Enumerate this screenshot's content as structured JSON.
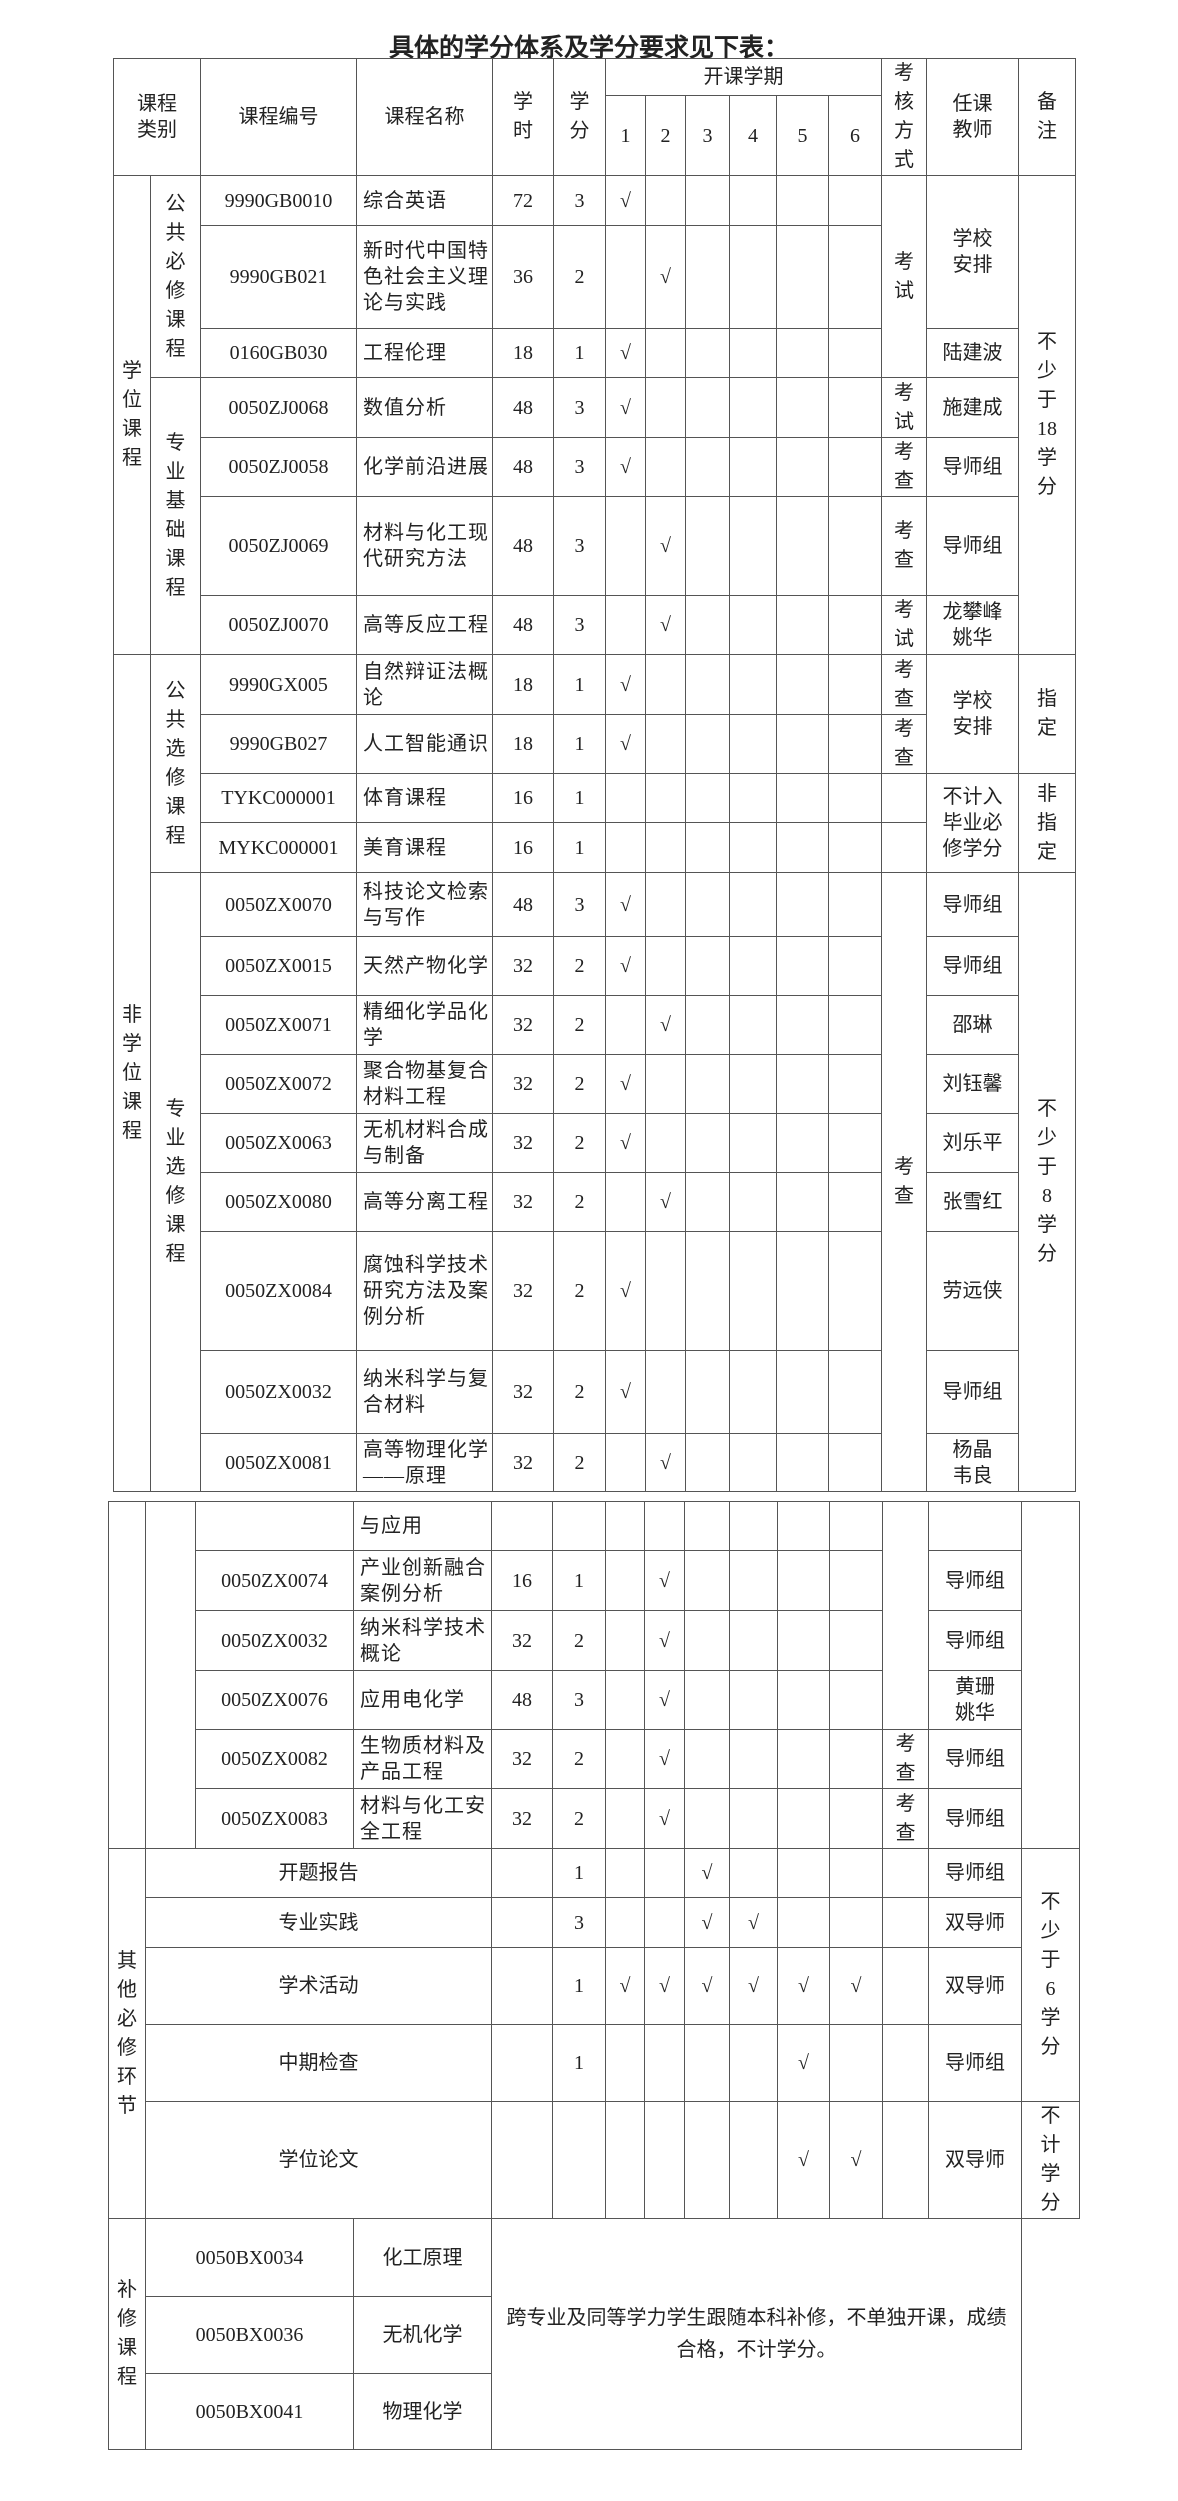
{
  "title": "具体的学分体系及学分要求见下表：",
  "header": {
    "category": "课程类别",
    "code": "课程编号",
    "name": "课程名称",
    "hours": "学时",
    "credits": "学分",
    "semester": "开课学期",
    "semesters": [
      "1",
      "2",
      "3",
      "4",
      "5",
      "6"
    ],
    "exam": "考核方式",
    "teacher": "任课教师",
    "note": "备注"
  },
  "groups": {
    "degree": "学位课程",
    "nondegree": "非学位课程",
    "other": "其他必修环节",
    "makeup": "补修课程"
  },
  "subgroups": {
    "public_required": "公共必修课程",
    "major_basic": "专业基础课程",
    "public_elective": "公共选修课程",
    "major_elective": "专业选修课程"
  },
  "courses": [
    {
      "code": "9990GB0010",
      "name": "综合英语",
      "hours": "72",
      "credits": "3",
      "sem": [
        "√",
        "",
        "",
        "",
        "",
        ""
      ]
    },
    {
      "code": "9990GB021",
      "name": "新时代中国特色社会主义理论与实践",
      "hours": "36",
      "credits": "2",
      "sem": [
        "",
        "√",
        "",
        "",
        "",
        ""
      ]
    },
    {
      "code": "0160GB030",
      "name": "工程伦理",
      "hours": "18",
      "credits": "1",
      "sem": [
        "√",
        "",
        "",
        "",
        "",
        ""
      ]
    },
    {
      "code": "0050ZJ0068",
      "name": "数值分析",
      "hours": "48",
      "credits": "3",
      "sem": [
        "√",
        "",
        "",
        "",
        "",
        ""
      ]
    },
    {
      "code": "0050ZJ0058",
      "name": "化学前沿进展",
      "hours": "48",
      "credits": "3",
      "sem": [
        "√",
        "",
        "",
        "",
        "",
        ""
      ]
    },
    {
      "code": "0050ZJ0069",
      "name": "材料与化工现代研究方法",
      "hours": "48",
      "credits": "3",
      "sem": [
        "",
        "√",
        "",
        "",
        "",
        ""
      ]
    },
    {
      "code": "0050ZJ0070",
      "name": "高等反应工程",
      "hours": "48",
      "credits": "3",
      "sem": [
        "",
        "√",
        "",
        "",
        "",
        ""
      ]
    },
    {
      "code": "9990GX005",
      "name": "自然辩证法概论",
      "hours": "18",
      "credits": "1",
      "sem": [
        "√",
        "",
        "",
        "",
        "",
        ""
      ]
    },
    {
      "code": "9990GB027",
      "name": "人工智能通识",
      "hours": "18",
      "credits": "1",
      "sem": [
        "√",
        "",
        "",
        "",
        "",
        ""
      ]
    },
    {
      "code": "TYKC000001",
      "name": "体育课程",
      "hours": "16",
      "credits": "1",
      "sem": [
        "",
        "",
        "",
        "",
        "",
        ""
      ]
    },
    {
      "code": "MYKC000001",
      "name": "美育课程",
      "hours": "16",
      "credits": "1",
      "sem": [
        "",
        "",
        "",
        "",
        "",
        ""
      ]
    },
    {
      "code": "0050ZX0070",
      "name": "科技论文检索与写作",
      "hours": "48",
      "credits": "3",
      "sem": [
        "√",
        "",
        "",
        "",
        "",
        ""
      ]
    },
    {
      "code": "0050ZX0015",
      "name": "天然产物化学",
      "hours": "32",
      "credits": "2",
      "sem": [
        "√",
        "",
        "",
        "",
        "",
        ""
      ]
    },
    {
      "code": "0050ZX0071",
      "name": "精细化学品化学",
      "hours": "32",
      "credits": "2",
      "sem": [
        "",
        "√",
        "",
        "",
        "",
        ""
      ]
    },
    {
      "code": "0050ZX0072",
      "name": "聚合物基复合材料工程",
      "hours": "32",
      "credits": "2",
      "sem": [
        "√",
        "",
        "",
        "",
        "",
        ""
      ]
    },
    {
      "code": "0050ZX0063",
      "name": "无机材料合成与制备",
      "hours": "32",
      "credits": "2",
      "sem": [
        "√",
        "",
        "",
        "",
        "",
        ""
      ]
    },
    {
      "code": "0050ZX0080",
      "name": "高等分离工程",
      "hours": "32",
      "credits": "2",
      "sem": [
        "",
        "√",
        "",
        "",
        "",
        ""
      ]
    },
    {
      "code": "0050ZX0084",
      "name": "腐蚀科学技术研究方法及案例分析",
      "hours": "32",
      "credits": "2",
      "sem": [
        "√",
        "",
        "",
        "",
        "",
        ""
      ]
    },
    {
      "code": "0050ZX0032",
      "name": "纳米科学与复合材料",
      "hours": "32",
      "credits": "2",
      "sem": [
        "√",
        "",
        "",
        "",
        "",
        ""
      ]
    },
    {
      "code": "0050ZX0081",
      "name": "高等物理化学——原理",
      "hours": "32",
      "credits": "2",
      "sem": [
        "",
        "√",
        "",
        "",
        "",
        ""
      ]
    },
    {
      "code": "",
      "name": "与应用",
      "hours": "",
      "credits": "",
      "sem": [
        "",
        "",
        "",
        "",
        "",
        ""
      ]
    },
    {
      "code": "0050ZX0074",
      "name": "产业创新融合案例分析",
      "hours": "16",
      "credits": "1",
      "sem": [
        "",
        "√",
        "",
        "",
        "",
        ""
      ]
    },
    {
      "code": "0050ZX0032",
      "name": "纳米科学技术概论",
      "hours": "32",
      "credits": "2",
      "sem": [
        "",
        "√",
        "",
        "",
        "",
        ""
      ]
    },
    {
      "code": "0050ZX0076",
      "name": "应用电化学",
      "hours": "48",
      "credits": "3",
      "sem": [
        "",
        "√",
        "",
        "",
        "",
        ""
      ]
    },
    {
      "code": "0050ZX0082",
      "name": "生物质材料及产品工程",
      "hours": "32",
      "credits": "2",
      "sem": [
        "",
        "√",
        "",
        "",
        "",
        ""
      ]
    },
    {
      "code": "0050ZX0083",
      "name": "材料与化工安全工程",
      "hours": "32",
      "credits": "2",
      "sem": [
        "",
        "√",
        "",
        "",
        "",
        ""
      ]
    }
  ],
  "exam": [
    "考试",
    "考试",
    "考查",
    "考查",
    "考试",
    "考查",
    "考查",
    "",
    "",
    "考查",
    "",
    "考查",
    "考查"
  ],
  "teachers": [
    "学校\n安排",
    "陆建波",
    "施建成",
    "导师组",
    "导师组",
    "龙攀峰\n姚华",
    "学校\n安排",
    "不计入\n毕业必\n修学分",
    "导师组",
    "导师组",
    "邵琳",
    "刘钰馨",
    "刘乐平",
    "张雪红",
    "劳远侠",
    "导师组",
    "杨晶\n韦良",
    "",
    "导师组",
    "导师组",
    "黄珊\n姚华",
    "导师组",
    "导师组"
  ],
  "notes": [
    "不少于18学分",
    "指定",
    "非指定",
    "不少于8学分",
    ""
  ],
  "other": {
    "items": [
      {
        "name": "开题报告",
        "credits": "1",
        "sem": [
          "",
          "",
          "√",
          "",
          "",
          ""
        ],
        "teacher": "导师组"
      },
      {
        "name": "专业实践",
        "credits": "3",
        "sem": [
          "",
          "",
          "√",
          "√",
          "",
          ""
        ],
        "teacher": "双导师"
      },
      {
        "name": "学术活动",
        "credits": "1",
        "sem": [
          "√",
          "√",
          "√",
          "√",
          "√",
          "√"
        ],
        "teacher": "双导师"
      },
      {
        "name": "中期检查",
        "credits": "1",
        "sem": [
          "",
          "",
          "",
          "",
          "√",
          ""
        ],
        "teacher": "导师组"
      },
      {
        "name": "学位论文",
        "credits": "",
        "sem": [
          "",
          "",
          "",
          "",
          "√",
          "√"
        ],
        "teacher": "双导师"
      }
    ],
    "notes": [
      "不少于6学分",
      "不计学分"
    ]
  },
  "makeup": {
    "courses": [
      {
        "code": "0050BX0034",
        "name": "化工原理"
      },
      {
        "code": "0050BX0036",
        "name": "无机化学"
      },
      {
        "code": "0050BX0041",
        "name": "物理化学"
      }
    ],
    "note": "跨专业及同等学力学生跟随本科补修，不单独开课，成绩合格，不计学分。"
  }
}
